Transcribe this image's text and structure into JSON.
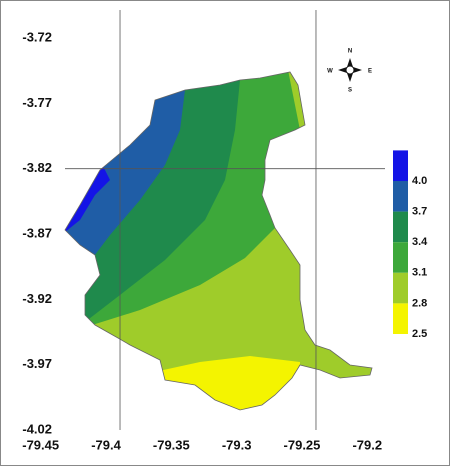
{
  "map": {
    "xlim": [
      -79.45,
      -79.2
    ],
    "ylim": [
      -4.02,
      -3.72
    ],
    "xticks": [
      -79.45,
      -79.4,
      -79.35,
      -79.3,
      -79.25,
      -79.2
    ],
    "yticks": [
      -3.72,
      -3.77,
      -3.82,
      -3.87,
      -3.92,
      -3.97,
      -4.02
    ],
    "gridlines": {
      "x": [
        -79.4,
        -79.25
      ],
      "y": [
        -3.82
      ]
    },
    "colorbar": {
      "ticks": [
        {
          "value": 4,
          "label": "4.0"
        },
        3.7,
        3.4,
        3.1,
        2.8,
        2.5
      ],
      "colors": [
        "#1414e6",
        "#1f5da6",
        "#1f8a4c",
        "#3da83a",
        "#9fcc2a",
        "#f4f400"
      ]
    },
    "compass": {
      "n": "N",
      "w": "W",
      "e": "E",
      "s": "S"
    }
  }
}
